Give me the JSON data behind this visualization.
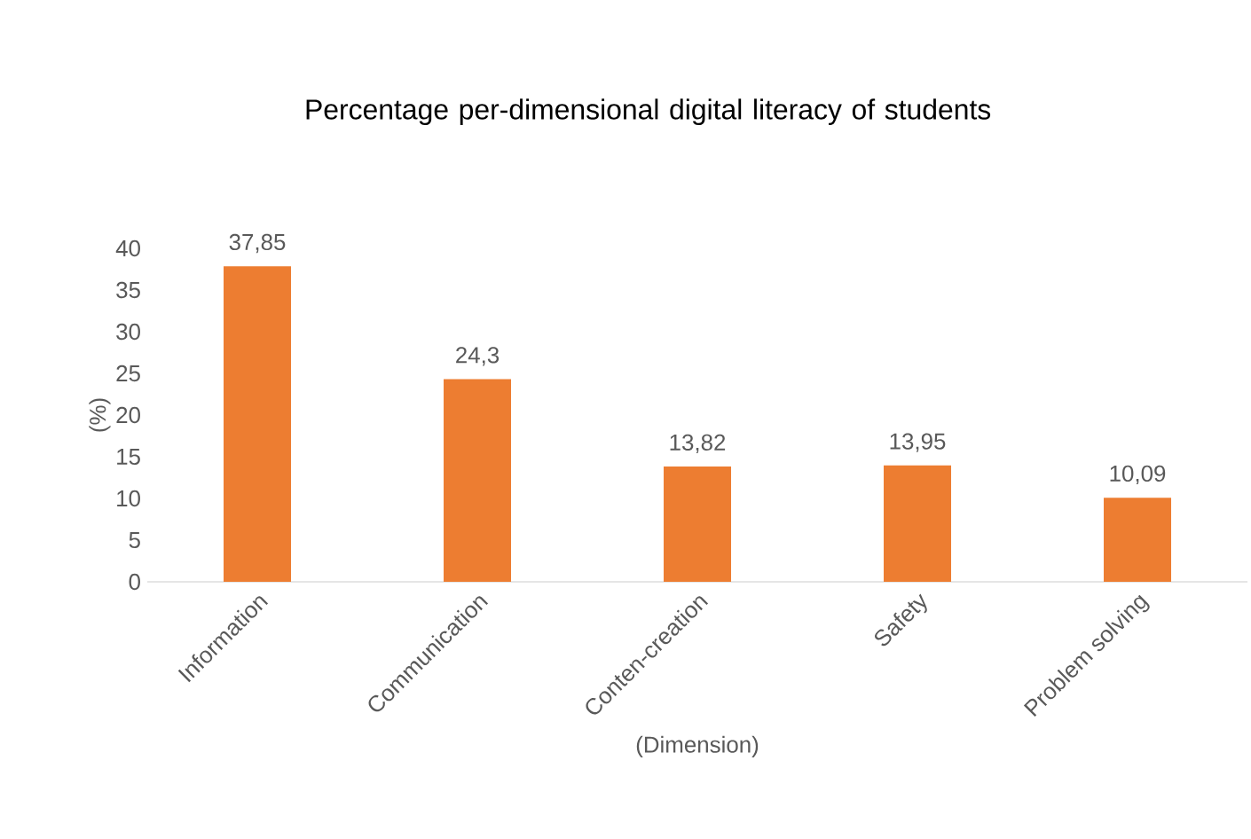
{
  "chart_data": {
    "type": "bar",
    "title": "Percentage per-dimensional digital literacy of students",
    "xlabel": "(Dimension)",
    "ylabel": "(%)",
    "categories": [
      "Information",
      "Communication",
      "Conten-creation",
      "Safety",
      "Problem solving"
    ],
    "values": [
      37.85,
      24.3,
      13.82,
      13.95,
      10.09
    ],
    "value_labels": [
      "37,85",
      "24,3",
      "13,82",
      "13,95",
      "10,09"
    ],
    "color": "#ed7d31",
    "ylim": [
      0,
      40
    ],
    "yticks": [
      0,
      5,
      10,
      15,
      20,
      25,
      30,
      35,
      40
    ],
    "grid": false
  }
}
